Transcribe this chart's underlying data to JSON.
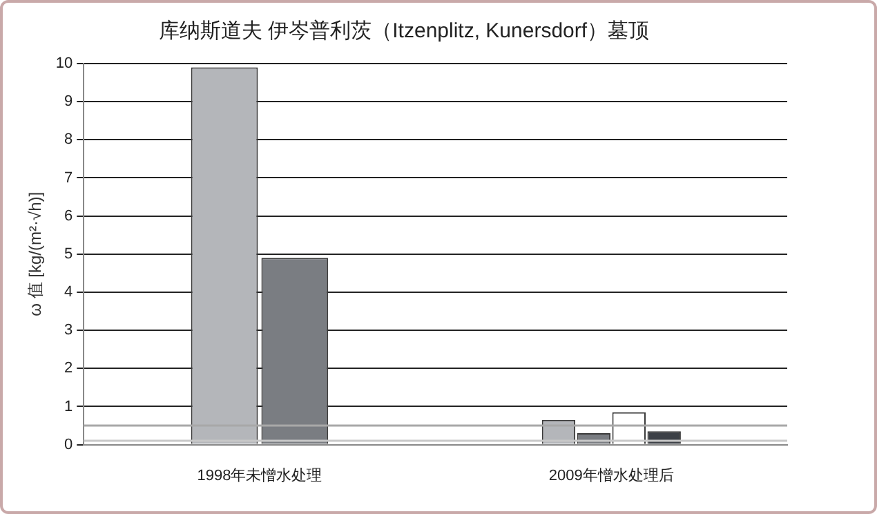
{
  "chart_data": {
    "type": "bar",
    "title": "库纳斯道夫 伊岑普利茨（Itzenplitz, Kunersdorf）墓顶",
    "ylabel": "ω 值 [kg/(m²·√h)]",
    "categories": [
      "1998年未憎水处理",
      "2009年憎水处理后"
    ],
    "series": [
      {
        "color": "#b4b6ba",
        "values": [
          9.9,
          0.65
        ]
      },
      {
        "color": "#7a7d82",
        "values": [
          4.9,
          0.3
        ]
      },
      {
        "color": "#ffffff",
        "values": [
          null,
          0.85
        ]
      },
      {
        "color": "#3c4046",
        "values": [
          null,
          0.35
        ]
      }
    ],
    "ylim": [
      0,
      10
    ],
    "yticks": [
      0,
      1,
      2,
      3,
      4,
      5,
      6,
      7,
      8,
      9,
      10
    ],
    "grid": "y",
    "legend": false,
    "ref_lines": [
      {
        "axis": "y",
        "value": 0.5,
        "color": "#a8a8a8"
      },
      {
        "axis": "y",
        "value": 0.1,
        "color": "#c8c8c8"
      }
    ]
  }
}
